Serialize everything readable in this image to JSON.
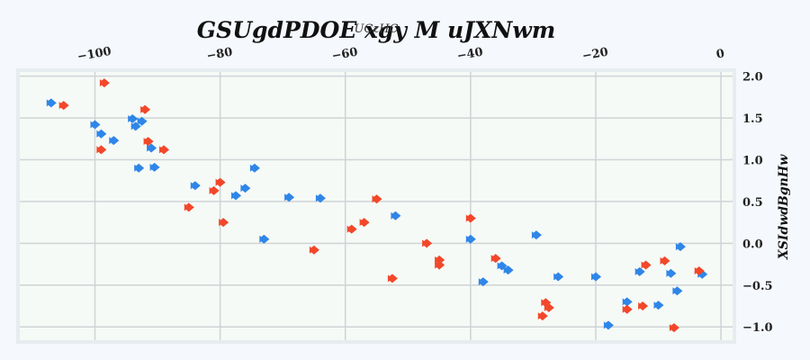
{
  "chart_data": {
    "type": "scatter",
    "title": "GSUgdPDOE xgy  M uJXNwm",
    "xlabel": "UCzHC",
    "ylabel": "XSIdwdBgnHw",
    "xlim": [
      -112,
      2
    ],
    "ylim": [
      -1.17,
      2.05
    ],
    "x_ticks": [
      -100,
      -80,
      -60,
      -40,
      -20,
      0
    ],
    "y_ticks": [
      2.0,
      1.5,
      1.0,
      0.5,
      0.0,
      -0.5,
      -1.0
    ],
    "x_tick_labels": [
      "−100",
      "−80",
      "−60",
      "−40",
      "−20",
      "0"
    ],
    "y_tick_labels": [
      "2.0",
      "1.5",
      "1.0",
      "0.5",
      "0.0",
      "−0.5",
      "−1.0"
    ],
    "x_axis_position": "top",
    "y_axis_position": "right",
    "grid": true,
    "background": "#f6faf6",
    "series": [
      {
        "color": "#2f86e8",
        "points": [
          [
            -107,
            1.68
          ],
          [
            -100,
            1.42
          ],
          [
            -99,
            1.31
          ],
          [
            -97,
            1.23
          ],
          [
            -94,
            1.49
          ],
          [
            -93.5,
            1.4
          ],
          [
            -92.5,
            1.46
          ],
          [
            -91,
            1.14
          ],
          [
            -93,
            0.9
          ],
          [
            -90.5,
            0.91
          ],
          [
            -84,
            0.69
          ],
          [
            -77.5,
            0.57
          ],
          [
            -76,
            0.66
          ],
          [
            -74.5,
            0.9
          ],
          [
            -73,
            0.05
          ],
          [
            -69,
            0.55
          ],
          [
            -64,
            0.54
          ],
          [
            -52,
            0.33
          ],
          [
            -40,
            0.05
          ],
          [
            -38,
            -0.46
          ],
          [
            -35,
            -0.27
          ],
          [
            -34,
            -0.32
          ],
          [
            -29.5,
            0.1
          ],
          [
            -26,
            -0.4
          ],
          [
            -20,
            -0.4
          ],
          [
            -18,
            -0.98
          ],
          [
            -15,
            -0.7
          ],
          [
            -13,
            -0.34
          ],
          [
            -10,
            -0.74
          ],
          [
            -8,
            -0.36
          ],
          [
            -7,
            -0.57
          ],
          [
            -6.5,
            -0.04
          ],
          [
            -3,
            -0.37
          ]
        ]
      },
      {
        "color": "#f2472a",
        "points": [
          [
            -105,
            1.65
          ],
          [
            -98.5,
            1.92
          ],
          [
            -99,
            1.12
          ],
          [
            -92,
            1.6
          ],
          [
            -91.5,
            1.22
          ],
          [
            -89,
            1.12
          ],
          [
            -85,
            0.43
          ],
          [
            -81,
            0.63
          ],
          [
            -80,
            0.73
          ],
          [
            -79.5,
            0.25
          ],
          [
            -65,
            -0.08
          ],
          [
            -59,
            0.17
          ],
          [
            -57,
            0.25
          ],
          [
            -55,
            0.53
          ],
          [
            -52.5,
            -0.42
          ],
          [
            -47,
            0.0
          ],
          [
            -45,
            -0.2
          ],
          [
            -45,
            -0.26
          ],
          [
            -40,
            0.3
          ],
          [
            -36,
            -0.18
          ],
          [
            -28.5,
            -0.87
          ],
          [
            -28,
            -0.71
          ],
          [
            -27.5,
            -0.77
          ],
          [
            -15,
            -0.79
          ],
          [
            -12.5,
            -0.75
          ],
          [
            -12,
            -0.26
          ],
          [
            -9,
            -0.21
          ],
          [
            -7.5,
            -1.01
          ],
          [
            -3.5,
            -0.33
          ]
        ]
      }
    ]
  }
}
